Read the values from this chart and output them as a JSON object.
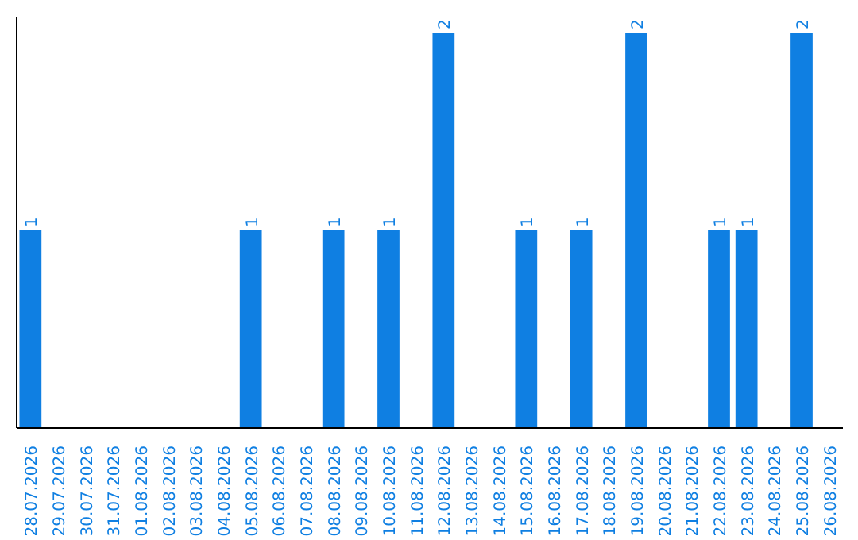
{
  "chart_data": {
    "type": "bar",
    "categories": [
      "28.07.2026",
      "29.07.2026",
      "30.07.2026",
      "31.07.2026",
      "01.08.2026",
      "02.08.2026",
      "03.08.2026",
      "04.08.2026",
      "05.08.2026",
      "06.08.2026",
      "07.08.2026",
      "08.08.2026",
      "09.08.2026",
      "10.08.2026",
      "11.08.2026",
      "12.08.2026",
      "13.08.2026",
      "14.08.2026",
      "15.08.2026",
      "16.08.2026",
      "17.08.2026",
      "18.08.2026",
      "19.08.2026",
      "20.08.2026",
      "21.08.2026",
      "22.08.2026",
      "23.08.2026",
      "24.08.2026",
      "25.08.2026",
      "26.08.2026"
    ],
    "values": [
      1,
      0,
      0,
      0,
      0,
      0,
      0,
      0,
      1,
      0,
      0,
      1,
      0,
      1,
      0,
      2,
      0,
      0,
      1,
      0,
      1,
      0,
      2,
      0,
      0,
      1,
      1,
      0,
      2,
      0
    ],
    "value_labels": [
      "1",
      null,
      null,
      null,
      null,
      null,
      null,
      null,
      "1",
      null,
      null,
      "1",
      null,
      "1",
      null,
      "2",
      null,
      null,
      "1",
      null,
      "1",
      null,
      "2",
      null,
      null,
      "1",
      "1",
      null,
      "2",
      null
    ],
    "color": "#0f7fe2",
    "grid": false,
    "tick_labels": "x"
  }
}
